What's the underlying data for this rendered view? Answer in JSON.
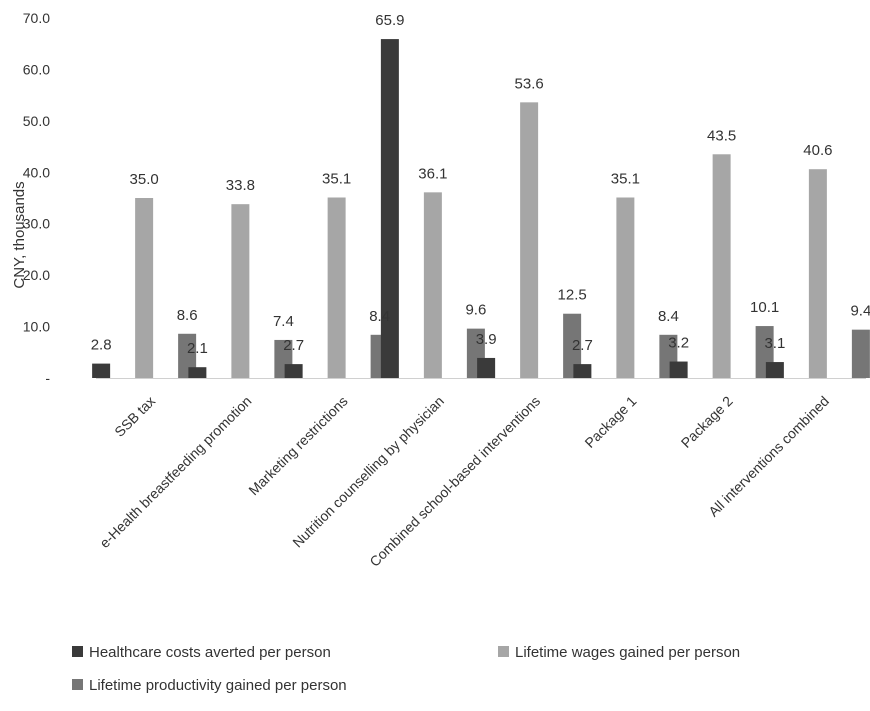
{
  "chart_data": {
    "type": "bar",
    "ylabel": "CNY, thousands",
    "ylim": [
      0,
      70
    ],
    "y_ticks": [
      "-",
      "10.0",
      "20.0",
      "30.0",
      "40.0",
      "50.0",
      "60.0",
      "70.0"
    ],
    "y_tick_values": [
      0,
      10,
      20,
      30,
      40,
      50,
      60,
      70
    ],
    "grid": false,
    "legend_position": "bottom",
    "categories": [
      "SSB tax",
      "e-Health breastfeeding promotion",
      "Marketing restrictions",
      "Nutrition counselling by physician",
      "Combined school-based interventions",
      "Package 1",
      "Package 2",
      "All interventions combined"
    ],
    "series": [
      {
        "name": "Healthcare costs averted per person",
        "color": "#3a3a3a",
        "values": [
          2.8,
          2.1,
          2.7,
          65.9,
          3.9,
          2.7,
          3.2,
          3.1
        ],
        "labels": [
          "2.8",
          "2.1",
          "2.7",
          "65.9",
          "3.9",
          "2.7",
          "3.2",
          "3.1"
        ]
      },
      {
        "name": "Lifetime wages gained per person",
        "color": "#a6a6a6",
        "values": [
          35.0,
          33.8,
          35.1,
          36.1,
          53.6,
          35.1,
          43.5,
          40.6
        ],
        "labels": [
          "35.0",
          "33.8",
          "35.1",
          "36.1",
          "53.6",
          "35.1",
          "43.5",
          "40.6"
        ]
      },
      {
        "name": "Lifetime productivity gained per person",
        "color": "#767676",
        "values": [
          8.6,
          7.4,
          8.4,
          9.6,
          12.5,
          8.4,
          10.1,
          9.4
        ],
        "labels": [
          "8.6",
          "7.4",
          "8.4",
          "9.6",
          "12.5",
          "8.4",
          "10.1",
          "9.4"
        ]
      }
    ]
  }
}
